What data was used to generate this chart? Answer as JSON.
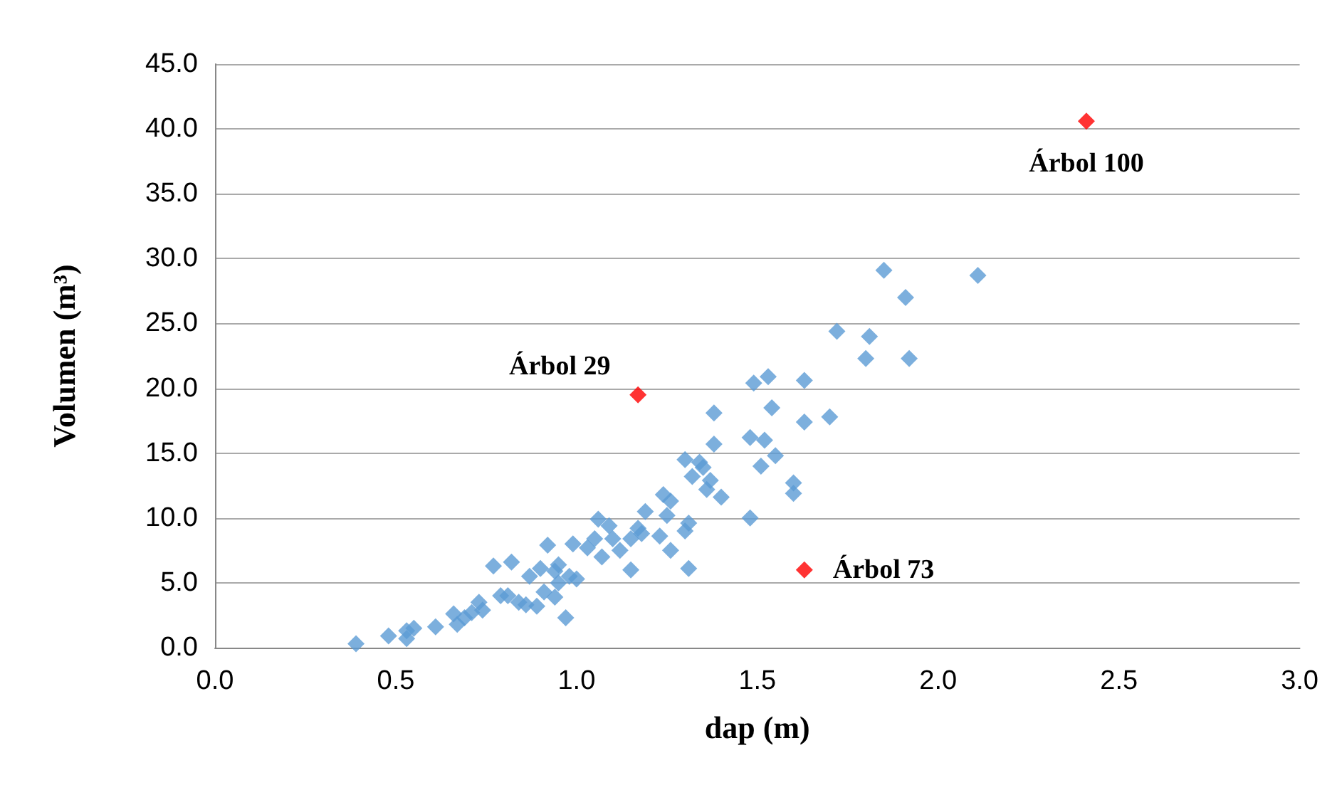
{
  "chart_data": {
    "type": "scatter",
    "xlabel": "dap (m)",
    "ylabel": "Volumen (m³)",
    "xlim": [
      0,
      3
    ],
    "xticks": [
      {
        "value": 0,
        "label": "0.0"
      },
      {
        "value": 0.5,
        "label": "0.5"
      },
      {
        "value": 1,
        "label": "1.0"
      },
      {
        "value": 1.5,
        "label": "1.5"
      },
      {
        "value": 2,
        "label": "2.0"
      },
      {
        "value": 2.5,
        "label": "2.5"
      },
      {
        "value": 3,
        "label": "3.0"
      }
    ],
    "ylim": [
      0,
      45
    ],
    "yticks": [
      {
        "value": 0,
        "label": "0.0"
      },
      {
        "value": 5,
        "label": "5.0"
      },
      {
        "value": 10,
        "label": "10.0"
      },
      {
        "value": 15,
        "label": "15.0"
      },
      {
        "value": 20,
        "label": "20.0"
      },
      {
        "value": 25,
        "label": "25.0"
      },
      {
        "value": 30,
        "label": "30.0"
      },
      {
        "value": 35,
        "label": "35.0"
      },
      {
        "value": 40,
        "label": "40.0"
      },
      {
        "value": 45,
        "label": "45.0"
      }
    ],
    "grid": "y",
    "marker": "diamond",
    "series": [
      {
        "color": "#5b9bd5",
        "x": [
          0.39,
          0.48,
          0.53,
          0.53,
          0.55,
          0.61,
          0.66,
          0.67,
          0.69,
          0.71,
          0.73,
          0.74,
          0.77,
          0.79,
          0.82,
          0.81,
          0.84,
          0.86,
          0.87,
          0.89,
          0.9,
          0.91,
          0.92,
          0.94,
          0.94,
          0.95,
          0.95,
          0.97,
          0.98,
          0.99,
          1.0,
          1.03,
          1.05,
          1.06,
          1.07,
          1.09,
          1.1,
          1.12,
          1.15,
          1.15,
          1.17,
          1.18,
          1.19,
          1.23,
          1.24,
          1.25,
          1.26,
          1.26,
          1.3,
          1.3,
          1.31,
          1.31,
          1.32,
          1.34,
          1.35,
          1.36,
          1.37,
          1.38,
          1.38,
          1.4,
          1.49,
          1.48,
          1.48,
          1.52,
          1.51,
          1.53,
          1.54,
          1.55,
          1.6,
          1.6,
          1.63,
          1.63,
          1.7,
          1.72,
          1.8,
          1.81,
          1.85,
          1.91,
          1.92,
          2.11
        ],
        "values": [
          0.3,
          0.9,
          1.3,
          0.7,
          1.5,
          1.6,
          2.6,
          1.8,
          2.3,
          2.7,
          3.5,
          2.9,
          6.3,
          4.0,
          6.6,
          4.0,
          3.5,
          3.3,
          5.5,
          3.2,
          6.1,
          4.3,
          7.9,
          3.9,
          5.9,
          6.4,
          5.0,
          2.3,
          5.5,
          8.0,
          5.3,
          7.7,
          8.4,
          9.9,
          7.0,
          9.4,
          8.4,
          7.5,
          8.4,
          6.0,
          9.2,
          8.8,
          10.5,
          8.6,
          11.8,
          10.2,
          11.3,
          7.5,
          14.5,
          9.0,
          9.6,
          6.1,
          13.2,
          14.3,
          13.9,
          12.2,
          12.9,
          15.7,
          18.1,
          11.6,
          20.4,
          10.0,
          16.2,
          16.0,
          14.0,
          20.9,
          18.5,
          14.8,
          12.7,
          11.9,
          17.4,
          20.6,
          17.8,
          24.4,
          22.3,
          24.0,
          29.1,
          27.0,
          22.3,
          28.7
        ]
      },
      {
        "color": "#ff0000",
        "x": [
          1.17,
          1.63,
          2.41
        ],
        "values": [
          19.5,
          6.0,
          40.6
        ]
      }
    ],
    "annotations": [
      {
        "text": "Árbol 29",
        "x": 1.17,
        "y": 19.5
      },
      {
        "text": "Árbol 73",
        "x": 1.63,
        "y": 6.0
      },
      {
        "text": "Árbol 100",
        "x": 2.41,
        "y": 40.6
      }
    ]
  }
}
